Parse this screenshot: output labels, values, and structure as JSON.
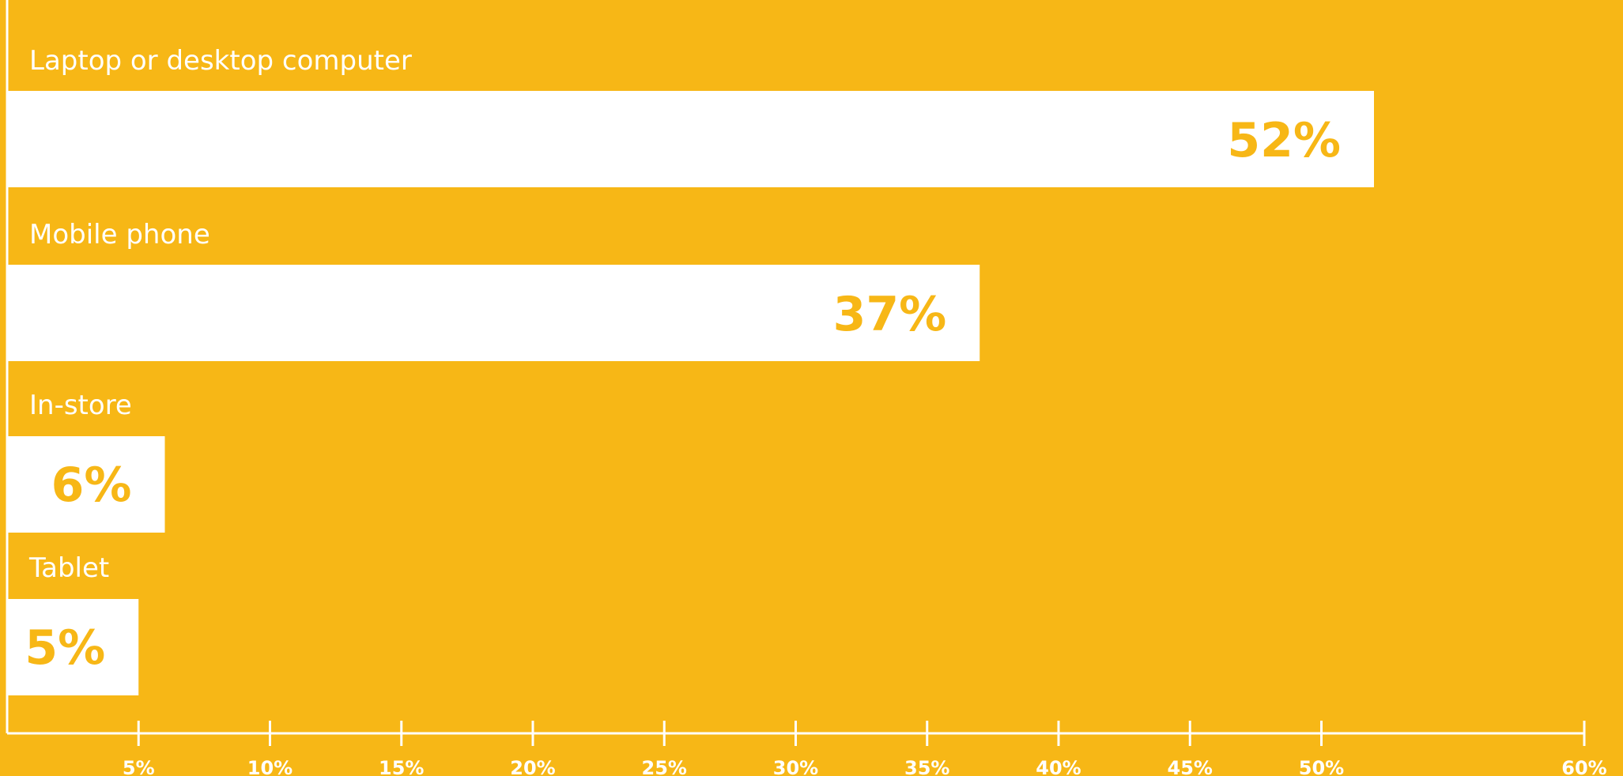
{
  "colors": {
    "background": "#F7B716",
    "bar": "#FFFFFF",
    "value_text": "#F7B716",
    "axis": "#FFFFFF",
    "label_text": "#FFFFFF"
  },
  "chart_data": {
    "type": "bar",
    "orientation": "horizontal",
    "categories": [
      "Laptop or desktop computer",
      "Mobile phone",
      "In-store",
      "Tablet"
    ],
    "values": [
      52,
      37,
      6,
      5
    ],
    "value_labels": [
      "52%",
      "37%",
      "6%",
      "5%"
    ],
    "xlim": [
      0,
      60
    ],
    "x_ticks": [
      5,
      10,
      15,
      20,
      25,
      30,
      35,
      40,
      45,
      50,
      60
    ],
    "x_tick_labels": [
      "5%",
      "10%",
      "15%",
      "20%",
      "25%",
      "30%",
      "35%",
      "40%",
      "45%",
      "50%",
      "60%"
    ],
    "grid": false,
    "legend": "none"
  }
}
